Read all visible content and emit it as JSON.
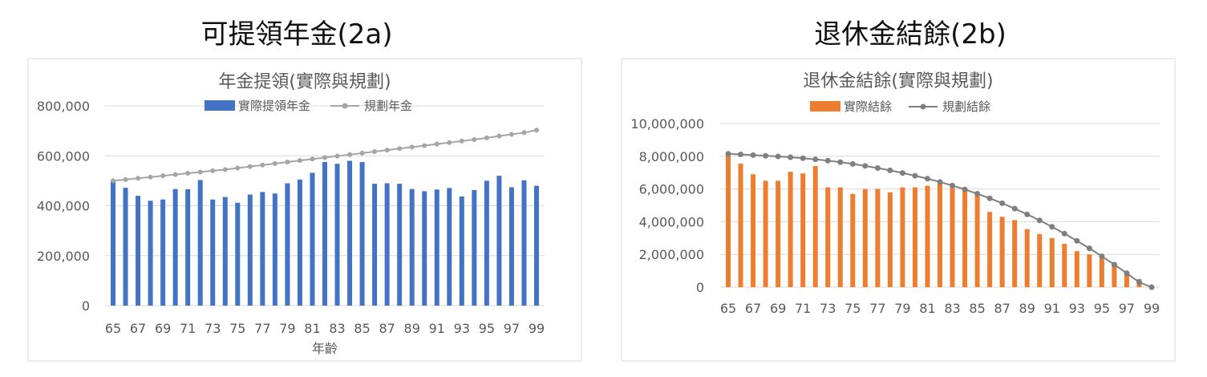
{
  "panels": [
    {
      "heading": "可提領年金(2a)",
      "chart_data": {
        "type": "bar",
        "title": "年金提領(實際與規劃)",
        "xlabel": "年齡",
        "ylabel": "",
        "ylim": [
          0,
          800000
        ],
        "ytick_values": [
          0,
          200000,
          400000,
          600000,
          800000
        ],
        "ytick_labels": [
          "0",
          "200,000",
          "400,000",
          "600,000",
          "800,000"
        ],
        "x": [
          65,
          66,
          67,
          68,
          69,
          70,
          71,
          72,
          73,
          74,
          75,
          76,
          77,
          78,
          79,
          80,
          81,
          82,
          83,
          84,
          85,
          86,
          87,
          88,
          89,
          90,
          91,
          92,
          93,
          94,
          95,
          96,
          97,
          98,
          99
        ],
        "xtick_labels": [
          "65",
          "67",
          "69",
          "71",
          "73",
          "75",
          "77",
          "79",
          "81",
          "83",
          "85",
          "87",
          "89",
          "91",
          "93",
          "95",
          "97",
          "99"
        ],
        "series": [
          {
            "name": "實際提領年金",
            "kind": "bar",
            "color": "#4472c4",
            "values": [
              500000,
              472000,
              440000,
              420000,
              425000,
              467000,
              466000,
              503000,
              425000,
              435000,
              412000,
              445000,
              455000,
              449000,
              490000,
              505000,
              532000,
              575000,
              568000,
              580000,
              575000,
              488000,
              490000,
              488000,
              467000,
              458000,
              465000,
              471000,
              437000,
              463000,
              500000,
              520000,
              474000,
              502000,
              480000
            ]
          },
          {
            "name": "規劃年金",
            "kind": "line",
            "color": "#a5a5a5",
            "values": [
              500000,
              505000,
              510000,
              515000,
              520000,
              525000,
              530000,
              535000,
              540000,
              545000,
              551000,
              557000,
              563000,
              569000,
              575000,
              581000,
              587000,
              593000,
              599000,
              605000,
              611000,
              617000,
              623000,
              629000,
              635000,
              641000,
              647000,
              653000,
              659000,
              665000,
              672000,
              679000,
              686000,
              693000,
              703000
            ]
          }
        ]
      }
    },
    {
      "heading": "退休金結餘(2b)",
      "chart_data": {
        "type": "bar",
        "title": "退休金結餘(實際與規劃)",
        "xlabel": "",
        "ylabel": "",
        "ylim": [
          0,
          10000000
        ],
        "ytick_values": [
          0,
          2000000,
          4000000,
          6000000,
          8000000,
          10000000
        ],
        "ytick_labels": [
          "0",
          "2,000,000",
          "4,000,000",
          "6,000,000",
          "8,000,000",
          "10,000,000"
        ],
        "x": [
          65,
          66,
          67,
          68,
          69,
          70,
          71,
          72,
          73,
          74,
          75,
          76,
          77,
          78,
          79,
          80,
          81,
          82,
          83,
          84,
          85,
          86,
          87,
          88,
          89,
          90,
          91,
          92,
          93,
          94,
          95,
          96,
          97,
          98,
          99
        ],
        "xtick_labels": [
          "65",
          "67",
          "69",
          "71",
          "73",
          "75",
          "77",
          "79",
          "81",
          "83",
          "85",
          "87",
          "89",
          "91",
          "93",
          "95",
          "97",
          "99"
        ],
        "series": [
          {
            "name": "實際結餘",
            "kind": "bar",
            "color": "#ed7d31",
            "values": [
              8150000,
              7550000,
              6900000,
              6500000,
              6500000,
              7050000,
              6950000,
              7400000,
              6100000,
              6100000,
              5700000,
              6000000,
              6000000,
              5800000,
              6100000,
              6100000,
              6200000,
              6500000,
              6150000,
              6100000,
              5700000,
              4600000,
              4300000,
              4100000,
              3550000,
              3250000,
              3000000,
              2650000,
              2200000,
              2000000,
              1750000,
              1400000,
              850000,
              500000,
              0
            ]
          },
          {
            "name": "規劃結餘",
            "kind": "line",
            "color": "#7f7f7f",
            "values": [
              8150000,
              8110000,
              8070000,
              8030000,
              7990000,
              7940000,
              7880000,
              7810000,
              7730000,
              7640000,
              7530000,
              7410000,
              7280000,
              7140000,
              6980000,
              6810000,
              6630000,
              6430000,
              6210000,
              5970000,
              5710000,
              5430000,
              5130000,
              4800000,
              4450000,
              4080000,
              3690000,
              3270000,
              2830000,
              2370000,
              1890000,
              1380000,
              850000,
              300000,
              0
            ]
          }
        ]
      }
    }
  ]
}
